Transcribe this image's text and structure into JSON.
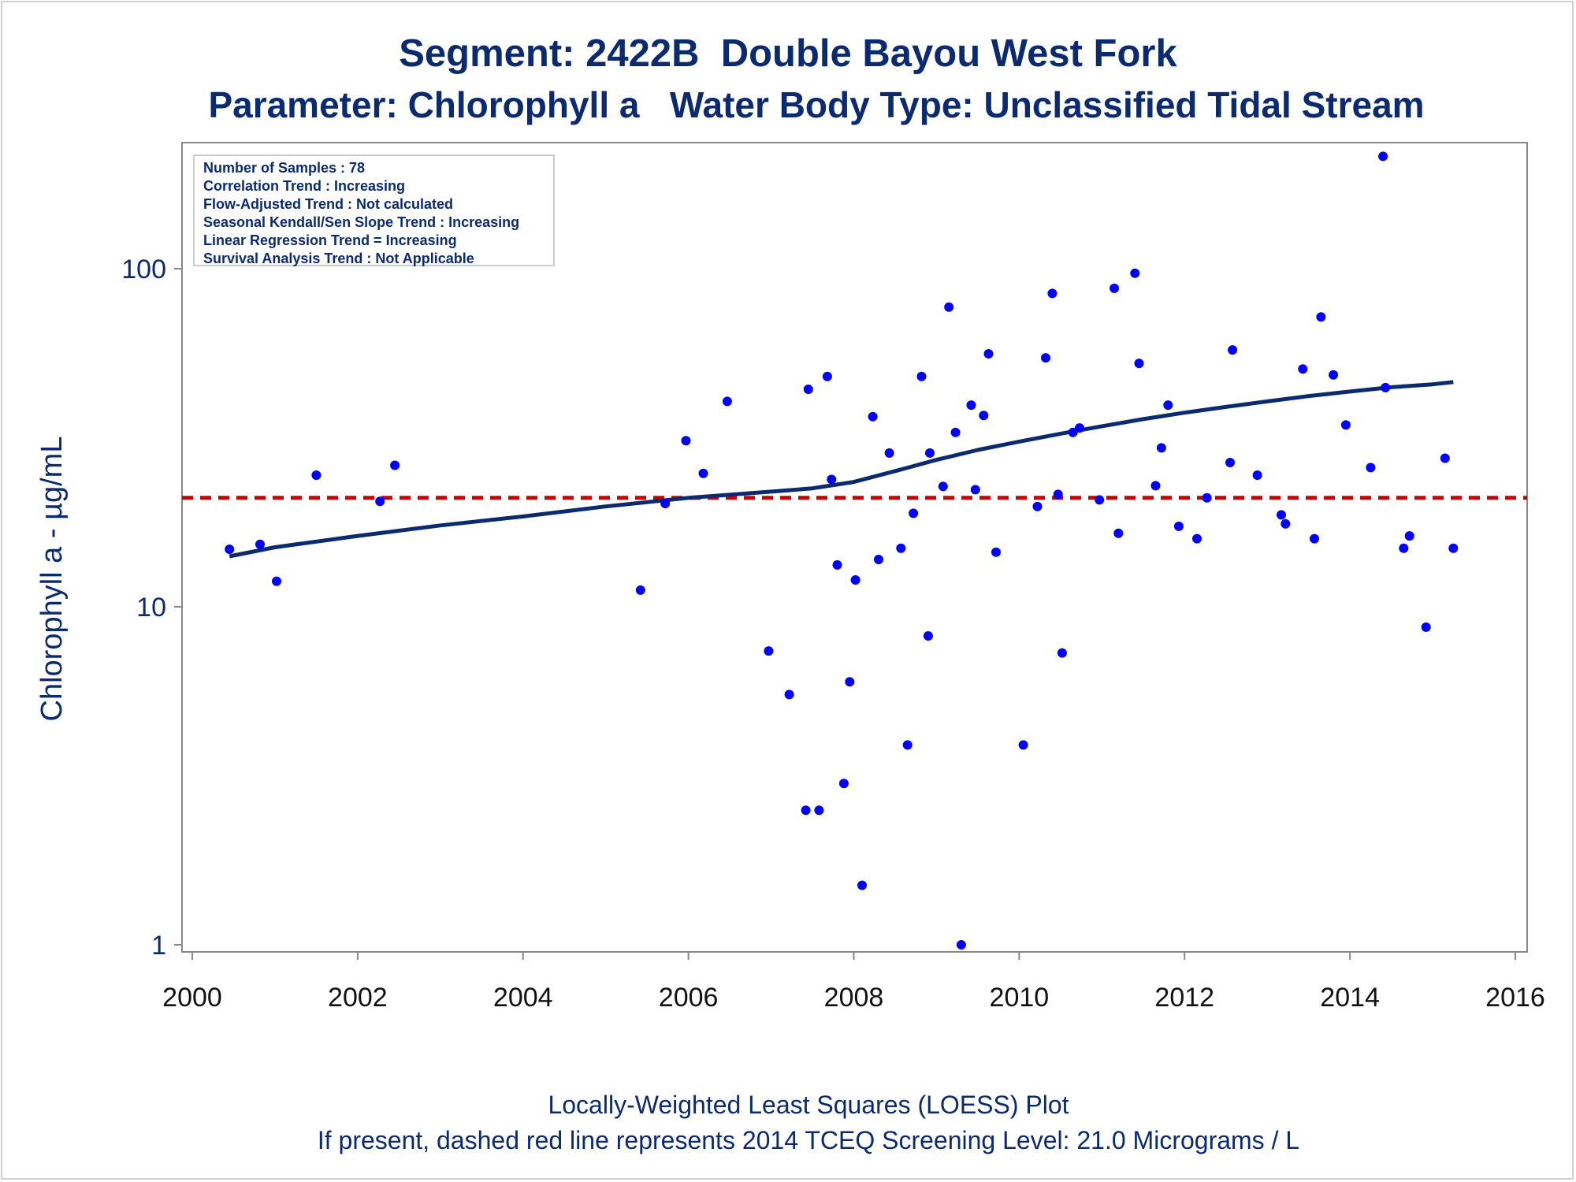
{
  "title": "Segment: 2422B  Double Bayou West Fork",
  "subtitle": "Parameter: Chlorophyll a   Water Body Type: Unclassified Tidal Stream",
  "info_box": [
    "Number of Samples : 78",
    "Correlation Trend : Increasing",
    "Flow-Adjusted Trend : Not calculated",
    "Seasonal Kendall/Sen Slope Trend : Increasing",
    "Linear Regression Trend = Increasing",
    "Survival Analysis Trend : Not Applicable"
  ],
  "footnote1": "Locally-Weighted Least Squares (LOESS) Plot",
  "footnote2": "If present, dashed red line represents 2014 TCEQ Screening Level: 21.0 Micrograms / L",
  "colors": {
    "text": "#0b2a6f",
    "points": "#0000ff",
    "loess": "#0b2a6f",
    "screening": "#cc0000",
    "axis": "#888888"
  },
  "chart_data": {
    "type": "scatter",
    "title": "Segment: 2422B  Double Bayou West Fork",
    "subtitle": "Parameter: Chlorophyll a   Water Body Type: Unclassified Tidal Stream",
    "xlabel": "",
    "ylabel": "Chlorophyll a -  µg/mL",
    "xlim": [
      2000,
      2016
    ],
    "ylim": [
      1,
      220
    ],
    "yscale": "log",
    "xticks": [
      2000,
      2002,
      2004,
      2006,
      2008,
      2010,
      2012,
      2014,
      2016
    ],
    "yticks": [
      1,
      10,
      100
    ],
    "grid": false,
    "screening_level": 21.0,
    "series": [
      {
        "type": "scatter",
        "x": [
          2000.45,
          2000.82,
          2001.02,
          2001.5,
          2002.27,
          2002.45,
          2005.42,
          2005.72,
          2005.97,
          2006.18,
          2006.47,
          2006.97,
          2007.22,
          2007.42,
          2007.45,
          2007.58,
          2007.68,
          2007.73,
          2007.8,
          2007.88,
          2007.95,
          2008.02,
          2008.1,
          2008.23,
          2008.3,
          2008.43,
          2008.57,
          2008.65,
          2008.72,
          2008.82,
          2008.9,
          2008.92,
          2009.08,
          2009.15,
          2009.23,
          2009.3,
          2009.42,
          2009.47,
          2009.57,
          2009.63,
          2009.72,
          2010.05,
          2010.22,
          2010.32,
          2010.4,
          2010.47,
          2010.52,
          2010.65,
          2010.73,
          2010.97,
          2011.15,
          2011.2,
          2011.4,
          2011.45,
          2011.65,
          2011.72,
          2011.8,
          2011.93,
          2012.15,
          2012.27,
          2012.55,
          2012.58,
          2012.88,
          2013.17,
          2013.22,
          2013.43,
          2013.57,
          2013.65,
          2013.8,
          2013.95,
          2014.25,
          2014.4,
          2014.43,
          2014.65,
          2014.72,
          2014.92,
          2015.15,
          2015.25
        ],
        "y": [
          14.8,
          15.3,
          11.9,
          24.5,
          20.5,
          26.2,
          11.2,
          20.2,
          31,
          24.8,
          40.5,
          7.4,
          5.5,
          2.5,
          44,
          2.5,
          48,
          23.8,
          13.3,
          3,
          6,
          12,
          1.5,
          36.5,
          13.8,
          28.5,
          14.9,
          3.9,
          18.9,
          48,
          8.2,
          28.5,
          22.7,
          77,
          32.8,
          1,
          39.5,
          22.2,
          36.8,
          56,
          14.5,
          3.9,
          19.8,
          54.5,
          84.5,
          21.5,
          7.3,
          32.8,
          33.8,
          20.7,
          87.5,
          16.5,
          97,
          52.5,
          22.8,
          29.5,
          39.5,
          17.3,
          15.9,
          21,
          26.7,
          57.5,
          24.5,
          18.7,
          17.6,
          50.5,
          15.9,
          72,
          48.5,
          34.5,
          25.8,
          215,
          44.5,
          14.9,
          16.2,
          8.7,
          27.5,
          14.9
        ]
      },
      {
        "type": "line",
        "name": "",
        "x": [
          2000.45,
          2001,
          2002,
          2003,
          2004,
          2005,
          2006,
          2007,
          2007.5,
          2008,
          2008.5,
          2009,
          2009.5,
          2010,
          2010.5,
          2011,
          2011.5,
          2012,
          2012.5,
          2013,
          2013.5,
          2014,
          2014.5,
          2015,
          2015.25
        ],
        "y": [
          14.1,
          15,
          16.2,
          17.4,
          18.5,
          19.8,
          21,
          21.9,
          22.4,
          23.4,
          25.2,
          27.2,
          29.1,
          30.8,
          32.5,
          34.2,
          35.9,
          37.5,
          39,
          40.5,
          42,
          43.3,
          44.6,
          45.5,
          46.2
        ]
      }
    ]
  }
}
